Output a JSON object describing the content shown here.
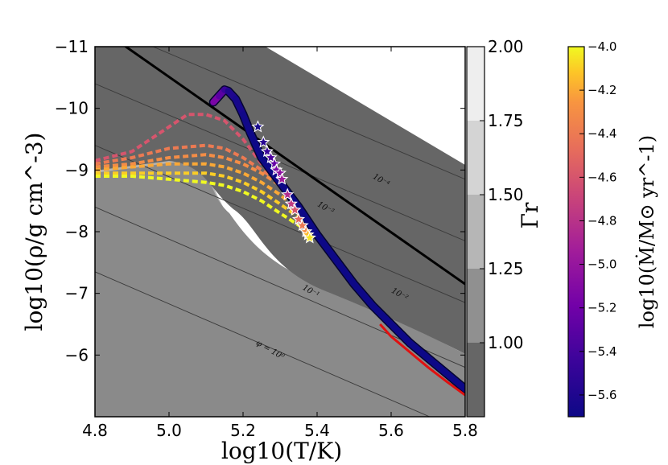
{
  "chart_data": {
    "type": "line",
    "title": "",
    "xlabel": "log10(T/K)",
    "ylabel": "log10(ρ/g cm^-3)",
    "xlim": [
      4.8,
      5.8
    ],
    "ylim": [
      -11,
      -5
    ],
    "x_ticks": [
      "4.8",
      "5.0",
      "5.2",
      "5.4",
      "5.6",
      "5.8"
    ],
    "y_ticks": [
      "−11",
      "−10",
      "−9",
      "−8",
      "−7",
      "−6"
    ],
    "background": {
      "name": "Γr",
      "colorbar_label": "Γr",
      "ticks": [
        "2.00",
        "1.75",
        "1.50",
        "1.25",
        "1.00"
      ],
      "range": [
        0.75,
        2.0
      ],
      "levels": [
        1.0,
        1.25,
        1.5,
        1.75,
        2.0
      ]
    },
    "mdot_colorbar": {
      "label": "log10(Ṁ/M⊙ yr^-1)",
      "ticks": [
        "−4.0",
        "−4.2",
        "−4.4",
        "−4.6",
        "−4.8",
        "−5.0",
        "−5.2",
        "−5.4",
        "−5.6"
      ],
      "range": [
        -5.7,
        -4.0
      ]
    },
    "phi_contours": [
      {
        "label": "φ = 10⁰",
        "log_phi": 0,
        "points": [
          [
            4.8,
            -7.35
          ],
          [
            5.8,
            -4.75
          ]
        ]
      },
      {
        "label": "10⁻¹",
        "log_phi": -1,
        "points": [
          [
            4.8,
            -8.4
          ],
          [
            5.8,
            -5.8
          ]
        ]
      },
      {
        "label": "10⁻²",
        "log_phi": -2,
        "points": [
          [
            4.8,
            -9.4
          ],
          [
            5.8,
            -6.85
          ]
        ]
      },
      {
        "label": "10⁻³",
        "log_phi": -3,
        "points": [
          [
            4.8,
            -10.4
          ],
          [
            5.8,
            -7.85
          ]
        ]
      },
      {
        "label": "10⁻⁴",
        "log_phi": -4,
        "points": [
          [
            4.8,
            -11.4
          ],
          [
            5.8,
            -8.85
          ]
        ]
      }
    ],
    "black_line": {
      "points": [
        [
          4.8,
          -11.35
        ],
        [
          5.8,
          -7.15
        ]
      ]
    },
    "main_track": {
      "name": "Ṁ track",
      "x": [
        5.12,
        5.135,
        5.15,
        5.16,
        5.18,
        5.2,
        5.22,
        5.25,
        5.3,
        5.35,
        5.4,
        5.45,
        5.5,
        5.55,
        5.6,
        5.65,
        5.7,
        5.75,
        5.8
      ],
      "y": [
        -10.1,
        -10.2,
        -10.3,
        -10.28,
        -10.15,
        -9.9,
        -9.6,
        -9.2,
        -8.8,
        -8.4,
        -7.95,
        -7.55,
        -7.15,
        -6.8,
        -6.5,
        -6.2,
        -5.95,
        -5.7,
        -5.45
      ],
      "mdot": [
        -5.0,
        -5.15,
        -5.3,
        -5.45,
        -5.6,
        -5.65,
        -5.68,
        -5.7,
        -5.7,
        -5.7,
        -5.7,
        -5.7,
        -5.7,
        -5.7,
        -5.7,
        -5.7,
        -5.7,
        -5.7,
        -5.7
      ]
    },
    "red_track": {
      "x": [
        5.57,
        5.6,
        5.65,
        5.7,
        5.75,
        5.8
      ],
      "y": [
        -6.5,
        -6.3,
        -6.05,
        -5.8,
        -5.57,
        -5.35
      ]
    },
    "dashed_tracks": [
      {
        "mdot": -4.6,
        "x": [
          4.8,
          4.9,
          5.0,
          5.05,
          5.1,
          5.15,
          5.2,
          5.25,
          5.3
        ],
        "y": [
          -9.15,
          -9.3,
          -9.7,
          -9.9,
          -9.9,
          -9.8,
          -9.5,
          -9.1,
          -8.8
        ]
      },
      {
        "mdot": -4.4,
        "x": [
          4.8,
          4.9,
          5.0,
          5.1,
          5.15,
          5.2,
          5.25,
          5.3,
          5.32
        ],
        "y": [
          -9.1,
          -9.2,
          -9.35,
          -9.4,
          -9.35,
          -9.2,
          -9.0,
          -8.8,
          -8.65
        ]
      },
      {
        "mdot": -4.3,
        "x": [
          4.8,
          4.9,
          5.0,
          5.1,
          5.15,
          5.2,
          5.25,
          5.3,
          5.34
        ],
        "y": [
          -9.05,
          -9.1,
          -9.2,
          -9.25,
          -9.2,
          -9.1,
          -8.95,
          -8.75,
          -8.5
        ]
      },
      {
        "mdot": -4.2,
        "x": [
          4.8,
          4.9,
          5.0,
          5.1,
          5.15,
          5.2,
          5.25,
          5.3,
          5.36
        ],
        "y": [
          -9.0,
          -9.05,
          -9.1,
          -9.1,
          -9.05,
          -8.95,
          -8.8,
          -8.6,
          -8.3
        ]
      },
      {
        "mdot": -4.1,
        "x": [
          4.8,
          4.9,
          5.0,
          5.1,
          5.15,
          5.2,
          5.25,
          5.3,
          5.38
        ],
        "y": [
          -8.95,
          -8.95,
          -8.95,
          -8.95,
          -8.9,
          -8.8,
          -8.65,
          -8.45,
          -8.1
        ]
      },
      {
        "mdot": -4.0,
        "x": [
          4.8,
          4.9,
          5.0,
          5.1,
          5.15,
          5.2,
          5.25,
          5.3,
          5.39
        ],
        "y": [
          -8.9,
          -8.9,
          -8.85,
          -8.8,
          -8.75,
          -8.65,
          -8.5,
          -8.3,
          -7.95
        ]
      }
    ],
    "star_markers": {
      "x": [
        5.24,
        5.255,
        5.265,
        5.275,
        5.285,
        5.29,
        5.3,
        5.305,
        5.32,
        5.33,
        5.34,
        5.35,
        5.36,
        5.37,
        5.375,
        5.38
      ],
      "y": [
        -9.7,
        -9.45,
        -9.3,
        -9.2,
        -9.1,
        -9.0,
        -8.95,
        -8.85,
        -8.6,
        -8.45,
        -8.35,
        -8.2,
        -8.1,
        -8.0,
        -7.95,
        -7.9
      ],
      "mdot": [
        -5.65,
        -5.55,
        -5.45,
        -5.35,
        -5.25,
        -5.15,
        -5.05,
        -4.95,
        -4.85,
        -4.75,
        -4.6,
        -4.5,
        -4.4,
        -4.3,
        -4.15,
        -4.05
      ]
    },
    "contour_label_positions": [
      {
        "text": "10⁻⁴",
        "x": 5.57,
        "y": -8.8
      },
      {
        "text": "10⁻³",
        "x": 5.42,
        "y": -8.35
      },
      {
        "text": "10⁻²",
        "x": 5.62,
        "y": -6.95
      },
      {
        "text": "10⁻¹",
        "x": 5.38,
        "y": -7.0
      },
      {
        "text": "φ = 10⁰",
        "x": 5.27,
        "y": -6.05
      }
    ]
  }
}
